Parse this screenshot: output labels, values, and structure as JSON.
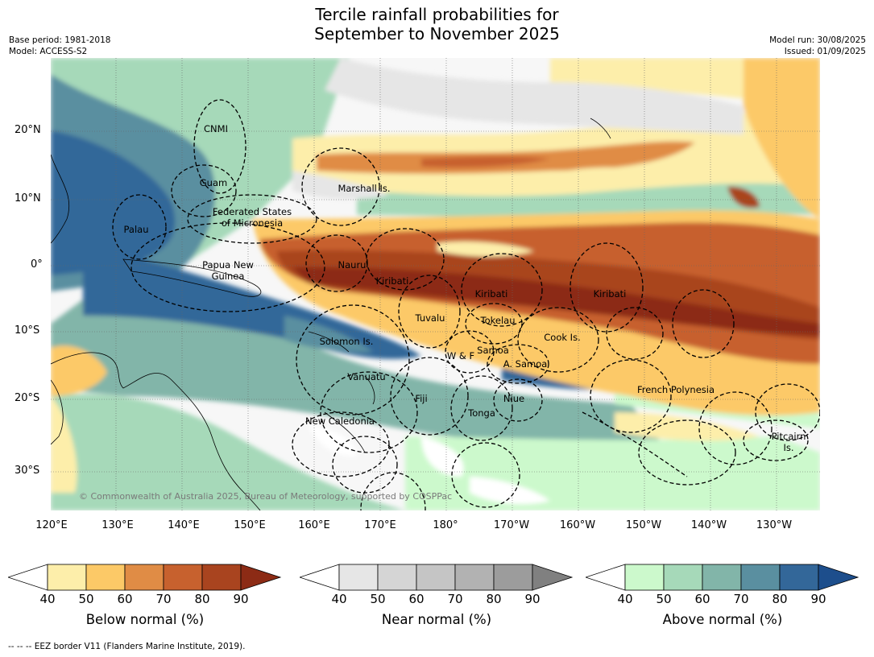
{
  "title": {
    "line1": "Tercile rainfall probabilities for",
    "line2": "September to November 2025"
  },
  "meta_left": {
    "base_period": "Base period: 1981-2018",
    "model": "Model: ACCESS-S2"
  },
  "meta_right": {
    "model_run": "Model run: 30/08/2025",
    "issued": "Issued: 01/09/2025"
  },
  "map": {
    "lat_labels": [
      "20°N",
      "10°N",
      "0°",
      "10°S",
      "20°S",
      "30°S"
    ],
    "lon_labels": [
      "120°E",
      "130°E",
      "140°E",
      "150°E",
      "160°E",
      "170°E",
      "180°",
      "170°W",
      "160°W",
      "150°W",
      "140°W",
      "130°W"
    ],
    "places": [
      "CNMI",
      "Guam",
      "Marshall Is.",
      "Federated States",
      "of Micronesia",
      "Palau",
      "Papua New",
      "Guinea",
      "Nauru",
      "Kiribati",
      "Kiribati",
      "Kiribati",
      "Tuvalu",
      "Tokelau",
      "Cook Is.",
      "Solomon Is.",
      "Samoa",
      "W & F",
      "A. Samoa",
      "Vanuatu",
      "Fiji",
      "Niue",
      "Tonga",
      "French Polynesia",
      "New Caledonia",
      "Pitcairn",
      "Is."
    ],
    "copyright": "© Commonwealth of Australia 2025, Bureau of Meteorology, supported by COSPPac"
  },
  "legends": [
    {
      "title": "Below normal (%)",
      "ticks": [
        "40",
        "50",
        "60",
        "70",
        "80",
        "90"
      ],
      "colors": [
        "#ffffff",
        "#fdeeaa",
        "#fcc967",
        "#e08c45",
        "#c7612e",
        "#a9441f",
        "#8c2b15"
      ]
    },
    {
      "title": "Near normal (%)",
      "ticks": [
        "40",
        "50",
        "60",
        "70",
        "80",
        "90"
      ],
      "colors": [
        "#ffffff",
        "#e6e6e6",
        "#d5d5d5",
        "#c5c5c5",
        "#b2b2b2",
        "#9c9c9c",
        "#808080"
      ]
    },
    {
      "title": "Above normal (%)",
      "ticks": [
        "40",
        "50",
        "60",
        "70",
        "80",
        "90"
      ],
      "colors": [
        "#ffffff",
        "#ccf9cc",
        "#a6d9b9",
        "#82b5a9",
        "#5a8fa0",
        "#336799",
        "#1d4e8c"
      ]
    }
  ],
  "footnote": "--  --  -- EEZ border V11 (Flanders Marine Institute, 2019)."
}
